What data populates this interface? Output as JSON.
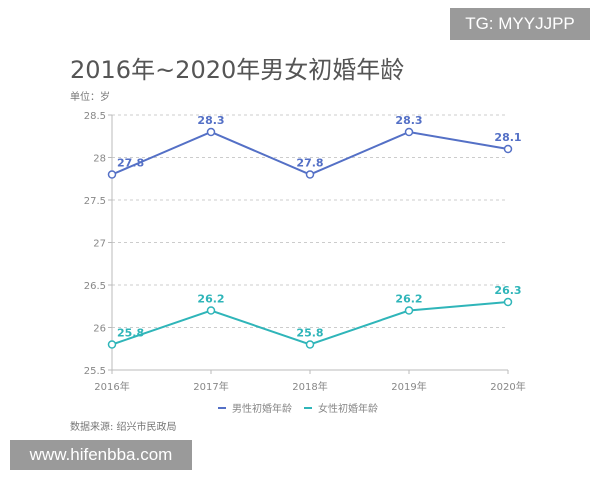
{
  "title": "2016年~2020年男女初婚年龄",
  "unit": "单位：岁",
  "source": "数据来源: 绍兴市民政局",
  "watermarks": [
    "TG: MYYJJPP",
    "www.hifenbba.com"
  ],
  "chart_data": {
    "type": "line",
    "title": "2016年~2020年男女初婚年龄",
    "categories": [
      "2016年",
      "2017年",
      "2018年",
      "2019年",
      "2020年"
    ],
    "ylim": [
      25.5,
      28.5
    ],
    "yticks": [
      25.5,
      26,
      26.5,
      27,
      27.5,
      28,
      28.5
    ],
    "grid": true,
    "legend": "bottom",
    "series": [
      {
        "name": "男性初婚年龄",
        "values": [
          27.8,
          28.3,
          27.8,
          28.3,
          28.1
        ],
        "color": "#5470c6"
      },
      {
        "name": "女性初婚年龄",
        "values": [
          25.8,
          26.2,
          25.8,
          26.2,
          26.3
        ],
        "color": "#2fb5b9"
      }
    ]
  }
}
